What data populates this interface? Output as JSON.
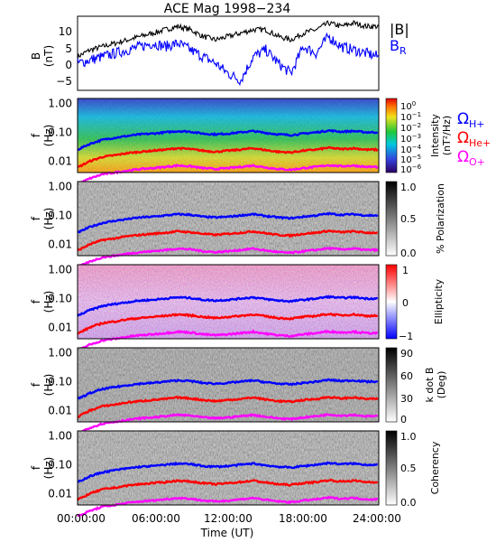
{
  "title": "ACE Mag 1998−234",
  "time_axis": {
    "label": "Time (UT)",
    "ticks": [
      "00:00:00",
      "06:00:00",
      "12:00:00",
      "18:00:00",
      "24:00:00"
    ],
    "hours": [
      0,
      6,
      12,
      18,
      24
    ]
  },
  "freq_axis": {
    "label_f": "f",
    "label_unit": "(Hz)",
    "ticks": [
      "1.00",
      "0.10",
      "0.01"
    ],
    "values": [
      1.0,
      0.1,
      0.01
    ]
  },
  "bfield_panel": {
    "ylabel_b": "B",
    "ylabel_unit": "(nT)",
    "yticks": [
      "10",
      "5",
      "0",
      "−5"
    ],
    "legend_b": "|B|",
    "legend_br": "B",
    "legend_br_sub": "R"
  },
  "colorbars": {
    "intensity": {
      "label1": "Intensity",
      "label2": "(nT²/Hz)",
      "ticks": [
        "10",
        "10",
        "10",
        "10",
        "10",
        "10",
        "10"
      ],
      "exponents": [
        "0",
        "−1",
        "−2",
        "−3",
        "−4",
        "−5",
        "−6"
      ]
    },
    "polarization": {
      "label": "% Polarization",
      "ticks": [
        "1.0",
        "0.5",
        "0.0"
      ]
    },
    "ellipticity": {
      "label": "Ellipticity",
      "ticks": [
        "1",
        "0",
        "−1"
      ]
    },
    "kdotb": {
      "label1": "k dot B",
      "label2": "(Deg)",
      "ticks": [
        "90",
        "60",
        "30",
        "0"
      ]
    },
    "coherency": {
      "label": "Coherency",
      "ticks": [
        "1.0",
        "0.5",
        "0.0"
      ]
    }
  },
  "gyro_legend": [
    {
      "symbol": "Ω",
      "sub": "H+",
      "color": "#0000ff"
    },
    {
      "symbol": "Ω",
      "sub": "He+",
      "color": "#ff0000"
    },
    {
      "symbol": "Ω",
      "sub": "O+",
      "color": "#ff00ff"
    }
  ],
  "colors": {
    "b_total": "#000000",
    "b_r": "#0000ff",
    "h_plus": "#0000ff",
    "he_plus": "#ff0000",
    "o_plus": "#ff00ff"
  },
  "chart_data": [
    {
      "type": "line",
      "panel": "magnetic_field",
      "xlabel": "Time (UT)",
      "ylabel": "B (nT)",
      "xlim": [
        0,
        24
      ],
      "ylim": [
        -8,
        14
      ],
      "x": [
        0,
        1,
        2,
        3,
        4,
        5,
        6,
        7,
        8,
        9,
        10,
        11,
        12,
        13,
        14,
        15,
        16,
        17,
        18,
        19,
        20,
        21,
        22,
        23,
        24
      ],
      "series": [
        {
          "name": "|B|",
          "values": [
            2,
            4,
            5,
            6,
            7,
            8,
            9,
            10,
            11,
            10,
            8,
            7,
            8,
            9,
            10,
            10,
            8,
            7,
            9,
            10,
            12,
            11,
            12,
            11,
            11
          ]
        },
        {
          "name": "B_R",
          "values": [
            0,
            1,
            2,
            3,
            4,
            5,
            6,
            5,
            6,
            4,
            2,
            0,
            -3,
            -5,
            2,
            4,
            0,
            -3,
            5,
            3,
            8,
            5,
            4,
            3,
            2
          ]
        }
      ]
    },
    {
      "type": "heatmap",
      "panel": "intensity",
      "zlabel": "Intensity (nT²/Hz)",
      "zlim": [
        1e-06,
        1
      ],
      "yscale": "log",
      "ylim": [
        0.004,
        1.5
      ],
      "x": [
        0,
        1,
        2,
        3,
        4,
        5,
        6,
        7,
        8,
        9,
        10,
        11,
        12,
        13,
        14,
        15,
        16,
        17,
        18,
        19,
        20,
        21,
        22,
        23,
        24
      ],
      "series": [
        {
          "name": "ΩH+",
          "values": [
            0.025,
            0.04,
            0.055,
            0.065,
            0.075,
            0.085,
            0.09,
            0.1,
            0.11,
            0.105,
            0.09,
            0.085,
            0.09,
            0.1,
            0.11,
            0.095,
            0.085,
            0.08,
            0.09,
            0.1,
            0.115,
            0.105,
            0.11,
            0.1,
            0.1
          ]
        },
        {
          "name": "ΩHe+",
          "values": [
            0.006,
            0.01,
            0.014,
            0.016,
            0.019,
            0.021,
            0.023,
            0.025,
            0.028,
            0.026,
            0.023,
            0.021,
            0.023,
            0.025,
            0.028,
            0.024,
            0.021,
            0.02,
            0.023,
            0.025,
            0.029,
            0.026,
            0.028,
            0.025,
            0.025
          ]
        },
        {
          "name": "ΩO+",
          "values": [
            0.0016,
            0.0025,
            0.0035,
            0.004,
            0.0047,
            0.0053,
            0.0057,
            0.0063,
            0.007,
            0.0066,
            0.0057,
            0.0053,
            0.0057,
            0.0063,
            0.007,
            0.006,
            0.0053,
            0.005,
            0.0057,
            0.0063,
            0.0072,
            0.0066,
            0.007,
            0.0063,
            0.0063
          ]
        }
      ]
    },
    {
      "type": "heatmap",
      "panel": "polarization",
      "zlabel": "% Polarization",
      "zlim": [
        0,
        1
      ],
      "yscale": "log",
      "ylim": [
        0.004,
        1.5
      ]
    },
    {
      "type": "heatmap",
      "panel": "ellipticity",
      "zlabel": "Ellipticity",
      "zlim": [
        -1,
        1
      ],
      "yscale": "log",
      "ylim": [
        0.004,
        1.5
      ]
    },
    {
      "type": "heatmap",
      "panel": "k_dot_b",
      "zlabel": "k dot B (Deg)",
      "zlim": [
        0,
        90
      ],
      "yscale": "log",
      "ylim": [
        0.004,
        1.5
      ]
    },
    {
      "type": "heatmap",
      "panel": "coherency",
      "zlabel": "Coherency",
      "zlim": [
        0,
        1
      ],
      "yscale": "log",
      "ylim": [
        0.004,
        1.5
      ]
    }
  ]
}
